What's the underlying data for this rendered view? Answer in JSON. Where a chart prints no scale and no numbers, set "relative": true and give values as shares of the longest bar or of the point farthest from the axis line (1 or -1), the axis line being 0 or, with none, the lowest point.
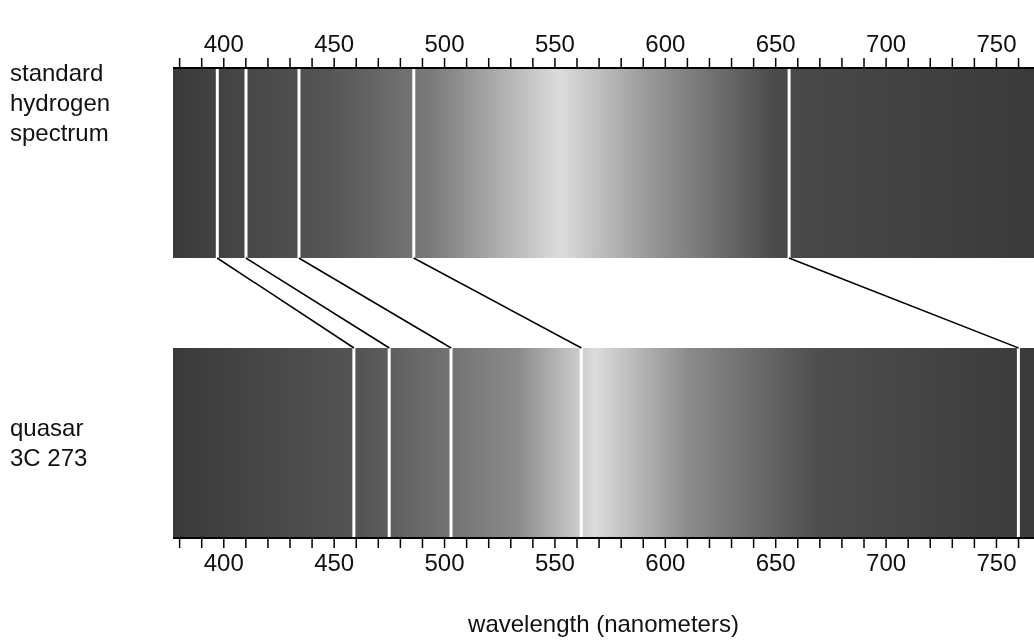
{
  "chart_data": [
    {
      "type": "bar",
      "relative": true,
      "ylabel": "standard hydrogen spectrum",
      "xlim": [
        377,
        767
      ],
      "color": "#ffffff",
      "xticks": [
        {
          "value": 380,
          "label": null
        },
        {
          "value": 390,
          "label": null
        },
        400,
        {
          "value": 410,
          "label": null
        },
        {
          "value": 420,
          "label": null
        },
        {
          "value": 430,
          "label": null
        },
        {
          "value": 440,
          "label": null
        },
        450,
        {
          "value": 460,
          "label": null
        },
        {
          "value": 470,
          "label": null
        },
        {
          "value": 480,
          "label": null
        },
        {
          "value": 490,
          "label": null
        },
        500,
        {
          "value": 510,
          "label": null
        },
        {
          "value": 520,
          "label": null
        },
        {
          "value": 530,
          "label": null
        },
        {
          "value": 540,
          "label": null
        },
        550,
        {
          "value": 560,
          "label": null
        },
        {
          "value": 570,
          "label": null
        },
        {
          "value": 580,
          "label": null
        },
        {
          "value": 590,
          "label": null
        },
        600,
        {
          "value": 610,
          "label": null
        },
        {
          "value": 620,
          "label": null
        },
        {
          "value": 630,
          "label": null
        },
        {
          "value": 640,
          "label": null
        },
        650,
        {
          "value": 660,
          "label": null
        },
        {
          "value": 670,
          "label": null
        },
        {
          "value": 680,
          "label": null
        },
        {
          "value": 690,
          "label": null
        },
        700,
        {
          "value": 710,
          "label": null
        },
        {
          "value": 720,
          "label": null
        },
        {
          "value": 730,
          "label": null
        },
        {
          "value": 740,
          "label": null
        },
        750,
        {
          "value": 760,
          "label": null
        }
      ],
      "x": [
        397,
        410,
        434,
        486,
        656
      ],
      "values": [
        1,
        1,
        1,
        1,
        1
      ]
    },
    {
      "type": "bar",
      "relative": true,
      "ylabel": "quasar 3C 273",
      "xlabel": "wavelength (nanometers)",
      "xlim": [
        377,
        767
      ],
      "color": "#ffffff",
      "xticks": [
        {
          "value": 380,
          "label": null
        },
        {
          "value": 390,
          "label": null
        },
        400,
        {
          "value": 410,
          "label": null
        },
        {
          "value": 420,
          "label": null
        },
        {
          "value": 430,
          "label": null
        },
        {
          "value": 440,
          "label": null
        },
        450,
        {
          "value": 460,
          "label": null
        },
        {
          "value": 470,
          "label": null
        },
        {
          "value": 480,
          "label": null
        },
        {
          "value": 490,
          "label": null
        },
        500,
        {
          "value": 510,
          "label": null
        },
        {
          "value": 520,
          "label": null
        },
        {
          "value": 530,
          "label": null
        },
        {
          "value": 540,
          "label": null
        },
        550,
        {
          "value": 560,
          "label": null
        },
        {
          "value": 570,
          "label": null
        },
        {
          "value": 580,
          "label": null
        },
        {
          "value": 590,
          "label": null
        },
        600,
        {
          "value": 610,
          "label": null
        },
        {
          "value": 620,
          "label": null
        },
        {
          "value": 630,
          "label": null
        },
        {
          "value": 640,
          "label": null
        },
        650,
        {
          "value": 660,
          "label": null
        },
        {
          "value": 670,
          "label": null
        },
        {
          "value": 680,
          "label": null
        },
        {
          "value": 690,
          "label": null
        },
        700,
        {
          "value": 710,
          "label": null
        },
        {
          "value": 720,
          "label": null
        },
        {
          "value": 730,
          "label": null
        },
        {
          "value": 740,
          "label": null
        },
        750,
        {
          "value": 760,
          "label": null
        }
      ],
      "x": [
        459,
        475,
        503,
        562,
        760
      ],
      "values": [
        1,
        1,
        1,
        1,
        1
      ]
    }
  ]
}
